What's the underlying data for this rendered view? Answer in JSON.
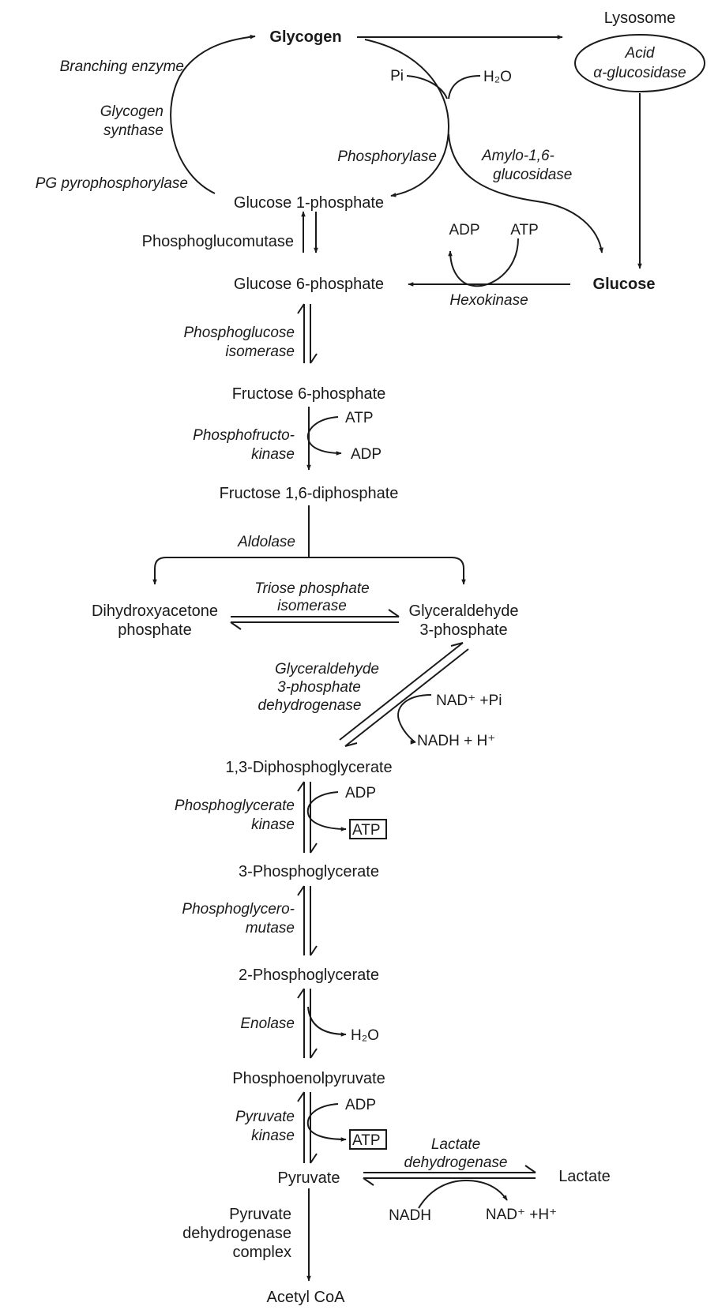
{
  "nodes": {
    "glycogen": "Glycogen",
    "lysosome": "Lysosome",
    "acid": "Acid",
    "alpha_glucosidase": "α-glucosidase",
    "glucose": "Glucose",
    "glucose_1_phosphate": "Glucose 1-phosphate",
    "glucose_6_phosphate": "Glucose 6-phosphate",
    "fructose_6_phosphate": "Fructose 6-phosphate",
    "fructose_1_6_diphosphate": "Fructose 1,6-diphosphate",
    "dihydroxyacetone_line1": "Dihydroxyacetone",
    "dihydroxyacetone_line2": "phosphate",
    "glyceraldehyde_line1": "Glyceraldehyde",
    "glyceraldehyde_line2": "3-phosphate",
    "diphosphoglycerate_1_3": "1,3-Diphosphoglycerate",
    "phosphoglycerate_3": "3-Phosphoglycerate",
    "phosphoglycerate_2": "2-Phosphoglycerate",
    "phosphoenolpyruvate": "Phosphoenolpyruvate",
    "pyruvate": "Pyruvate",
    "lactate": "Lactate",
    "acetyl_coa": "Acetyl CoA"
  },
  "enzymes": {
    "branching_enzyme": "Branching enzyme",
    "glycogen_synthase_line1": "Glycogen",
    "glycogen_synthase_line2": "synthase",
    "pg_pyrophosphorylase": "PG pyrophosphorylase",
    "phosphorylase": "Phosphorylase",
    "amylo_line1": "Amylo-1,6-",
    "amylo_line2": "glucosidase",
    "phosphoglucomutase": "Phosphoglucomutase",
    "hexokinase": "Hexokinase",
    "phosphoglucose_line1": "Phosphoglucose",
    "phosphoglucose_line2": "isomerase",
    "phosphofructo_line1": "Phosphofructo-",
    "phosphofructo_line2": "kinase",
    "aldolase": "Aldolase",
    "triose_line1": "Triose phosphate",
    "triose_line2": "isomerase",
    "gapdh_line1": "Glyceraldehyde",
    "gapdh_line2": "3-phosphate",
    "gapdh_line3": "dehydrogenase",
    "pgk_line1": "Phosphoglycerate",
    "pgk_line2": "kinase",
    "pgm_line1": "Phosphoglycero-",
    "pgm_line2": "mutase",
    "enolase": "Enolase",
    "pk_line1": "Pyruvate",
    "pk_line2": "kinase",
    "ldh_line1": "Lactate",
    "ldh_line2": "dehydrogenase",
    "pdh_line1": "Pyruvate",
    "pdh_line2": "dehydrogenase",
    "pdh_line3": "complex"
  },
  "cofactors": {
    "pi": "Pi",
    "h2o_top": "H₂O",
    "adp_hexo": "ADP",
    "atp_hexo": "ATP",
    "atp_pfk": "ATP",
    "adp_pfk": "ADP",
    "nad_pi": "NAD⁺ +Pi",
    "nadh_h": "NADH + H⁺",
    "adp_pgk": "ADP",
    "atp_pgk": "ATP",
    "h2o_enolase": "H₂O",
    "adp_pk": "ADP",
    "atp_pk": "ATP",
    "nadh_ldh": "NADH",
    "nad_h_ldh": "NAD⁺ +H⁺"
  }
}
